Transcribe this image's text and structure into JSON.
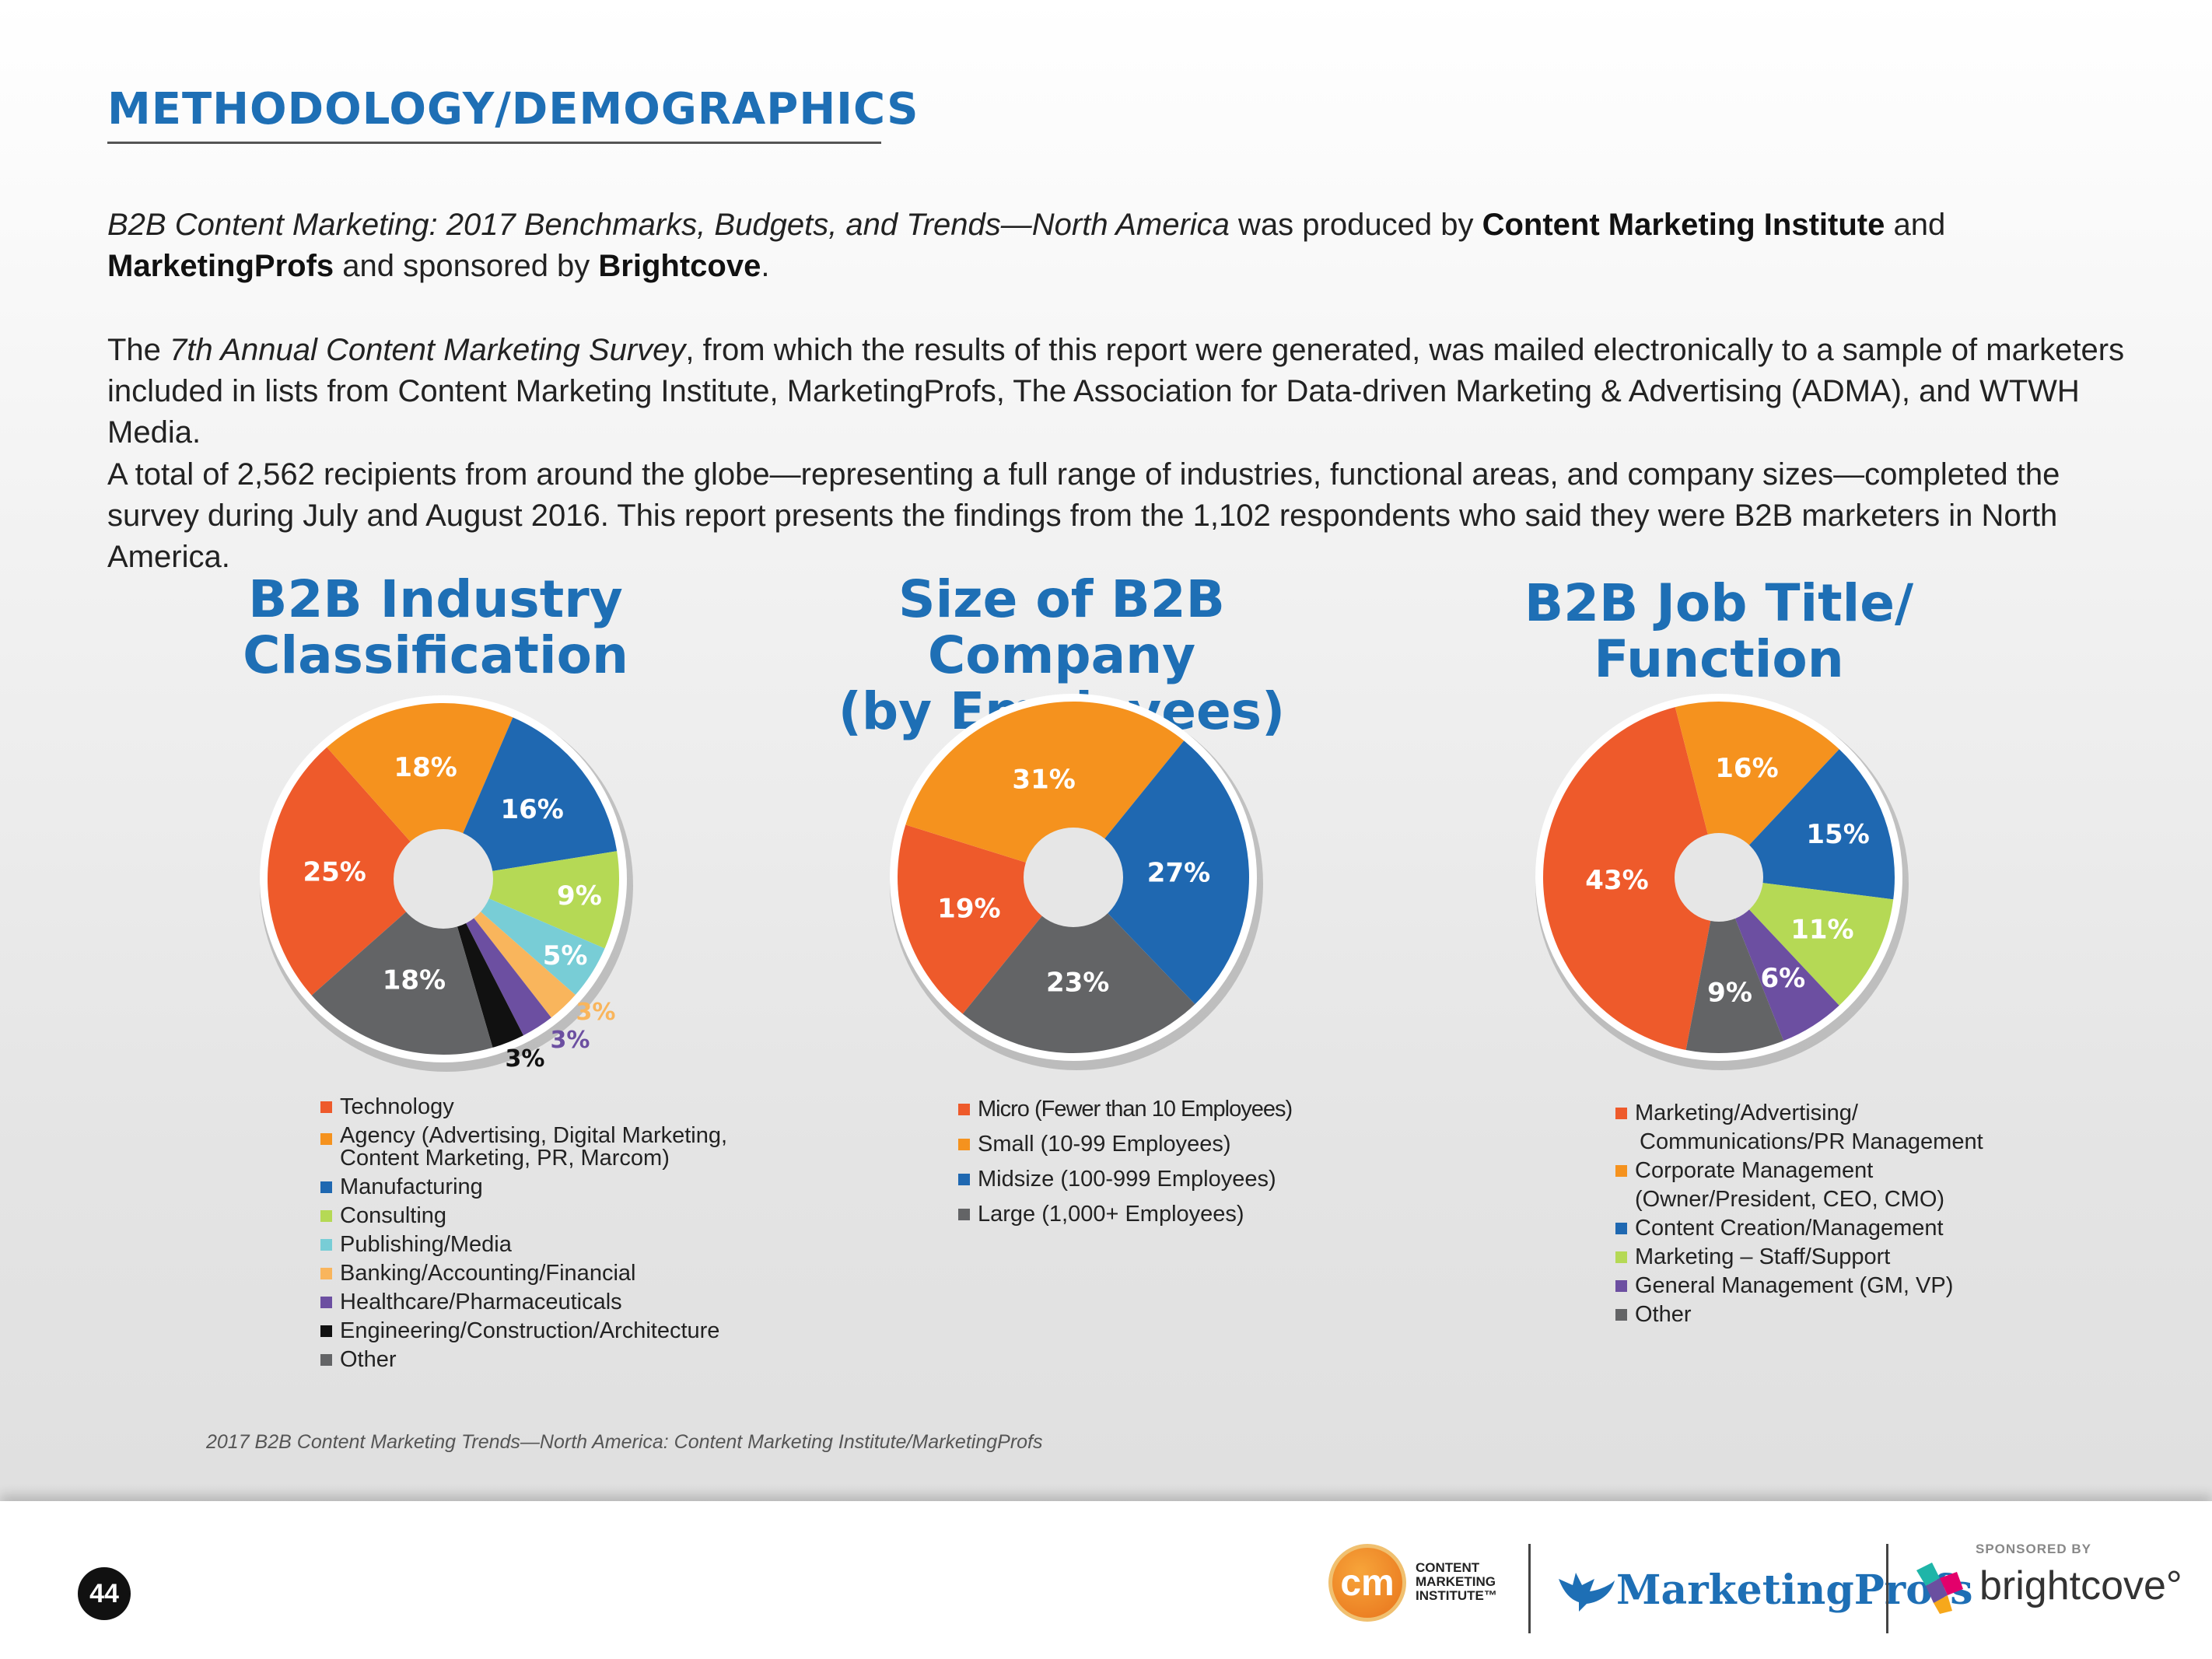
{
  "header": {
    "title": "METHODOLOGY/DEMOGRAPHICS"
  },
  "intro": {
    "p1_italic": "B2B Content Marketing: 2017 Benchmarks, Budgets, and Trends—North America",
    "p1_mid": " was produced by ",
    "p1_org1": "Content Marketing Institute",
    "p1_and": " and ",
    "p1_org2": "MarketingProfs",
    "p1_sponsored": " and sponsored by ",
    "p1_sponsor": "Brightcove",
    "p1_end": ".",
    "p2_start": "The ",
    "p2_italic": "7th Annual Content Marketing Survey",
    "p2_rest": ", from which the results of this report were generated, was mailed electronically to a sample of marketers included in lists from Content Marketing Institute, MarketingProfs, The Association for Data-driven Marketing & Advertising (ADMA), and WTWH Media.",
    "p3": "A total of 2,562 recipients from around the globe—representing a full range of industries, functional areas, and company sizes—completed the survey during July and August 2016. This report presents the findings from the 1,102 respondents who said they were B2B marketers in North America."
  },
  "chart_data": [
    {
      "type": "pie",
      "title_line1": "B2B Industry",
      "title_line2": "Classification",
      "categories": [
        "Technology",
        "Agency (Advertising, Digital Marketing,",
        "Manufacturing",
        "Consulting",
        "Publishing/Media",
        "Banking/Accounting/Financial",
        "Healthcare/Pharmaceuticals",
        "Engineering/Construction/Architecture",
        "Other"
      ],
      "legend_line2": [
        "",
        "Content Marketing, PR, Marcom)",
        "",
        "",
        "",
        "",
        "",
        "",
        ""
      ],
      "values": [
        25,
        18,
        16,
        9,
        5,
        3,
        3,
        3,
        18
      ],
      "data_labels": [
        "25%",
        "18%",
        "16%",
        "9%",
        "5%",
        "3%",
        "3%",
        "3%",
        "18%"
      ],
      "colors": [
        "#ee5a2b",
        "#f5921e",
        "#1f68b1",
        "#b5d955",
        "#78cdd6",
        "#f9b55c",
        "#6c4fa1",
        "#111111",
        "#636466"
      ]
    },
    {
      "type": "pie",
      "title_line1": "Size of B2B Company",
      "title_line2": "(by Employees)",
      "categories": [
        "Micro (Fewer than 10 Employees)",
        "Small (10-99 Employees)",
        "Midsize (100-999 Employees)",
        "Large (1,000+ Employees)"
      ],
      "values": [
        19,
        31,
        27,
        23
      ],
      "data_labels": [
        "19%",
        "31%",
        "27%",
        "23%"
      ],
      "colors": [
        "#ee5a2b",
        "#f5921e",
        "#1f68b1",
        "#636466"
      ]
    },
    {
      "type": "pie",
      "title_line1": "B2B Job Title/",
      "title_line2": "Function",
      "categories": [
        "Marketing/Advertising/",
        "Corporate Management",
        "Content Creation/Management",
        "Marketing – Staff/Support",
        "General Management (GM, VP)",
        "Other"
      ],
      "legend_line2": [
        "Communications/PR Management",
        "(Owner/President, CEO, CMO)",
        "",
        "",
        "",
        ""
      ],
      "values": [
        43,
        16,
        15,
        11,
        6,
        9
      ],
      "data_labels": [
        "43%",
        "16%",
        "15%",
        "11%",
        "6%",
        "9%"
      ],
      "colors": [
        "#ee5a2b",
        "#f5921e",
        "#1f68b1",
        "#b5d955",
        "#6c4fa1",
        "#636466"
      ]
    }
  ],
  "source": "2017 B2B Content Marketing Trends—North America: Content Marketing Institute/MarketingProfs",
  "footer": {
    "page_number": "44",
    "cmi_badge": "cm",
    "cmi_line1": "CONTENT",
    "cmi_line2": "MARKETING",
    "cmi_line3": "INSTITUTE™",
    "mp_name": "MarketingProfs",
    "sponsored_by": "SPONSORED BY",
    "bc_name": "brightcove°"
  }
}
